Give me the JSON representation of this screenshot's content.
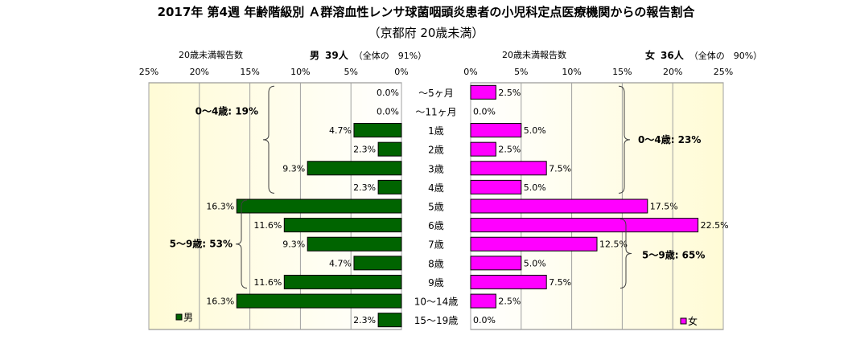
{
  "title": "2017年 第4週 年齢階級別 Ａ群溶血性レンサ球菌咽頭炎患者の小児科定点医療機関からの報告割合",
  "subtitle": "（京都府 20歳未満）",
  "male_header": {
    "label": "20歳未満報告数",
    "sex": "男",
    "count": "39人",
    "share": "（全体の　91%）"
  },
  "female_header": {
    "label": "20歳未満報告数",
    "sex": "女",
    "count": "36人",
    "share": "（全体の　90%）"
  },
  "chart_data": {
    "type": "bar",
    "orientation": "horizontal-butterfly",
    "categories": [
      "～5ヶ月",
      "～11ヶ月",
      "1歳",
      "2歳",
      "3歳",
      "4歳",
      "5歳",
      "6歳",
      "7歳",
      "8歳",
      "9歳",
      "10～14歳",
      "15～19歳"
    ],
    "xlim": [
      0,
      25
    ],
    "ticks": [
      "0%",
      "5%",
      "10%",
      "15%",
      "20%",
      "25%"
    ],
    "tick_values": [
      0,
      5,
      10,
      15,
      20,
      25
    ],
    "series": [
      {
        "name": "男",
        "side": "left",
        "color": "#006400",
        "values": [
          0.0,
          0.0,
          4.7,
          2.3,
          9.3,
          2.3,
          16.3,
          11.6,
          9.3,
          4.7,
          11.6,
          16.3,
          2.3
        ]
      },
      {
        "name": "女",
        "side": "right",
        "color": "#ff00ff",
        "values": [
          2.5,
          0.0,
          5.0,
          2.5,
          7.5,
          5.0,
          17.5,
          22.5,
          12.5,
          5.0,
          7.5,
          2.5,
          0.0
        ]
      }
    ],
    "annotations": {
      "male_0_4": "0～4歳: 19%",
      "male_5_9": "5～9歳: 53%",
      "female_0_4": "0～4歳: 23%",
      "female_5_9": "5～9歳: 65%"
    },
    "legend": "bottom-left / bottom-right",
    "grid": true
  }
}
